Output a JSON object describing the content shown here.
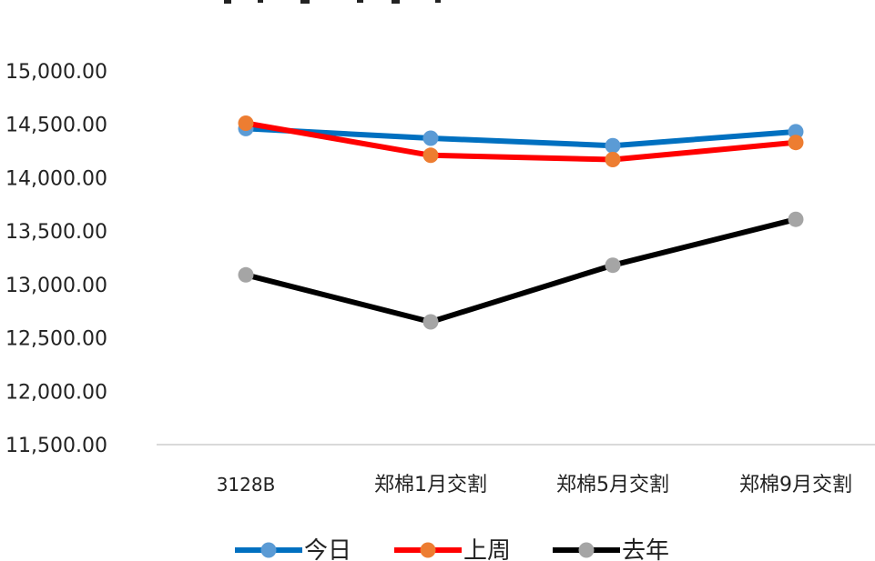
{
  "chart_data": {
    "type": "line",
    "title": "",
    "categories": [
      "3128B",
      "郑棉1月交割",
      "郑棉5月交割",
      "郑棉9月交割"
    ],
    "ylim": [
      11500,
      15000
    ],
    "yticks": [
      "15,000.00",
      "14,500.00",
      "14,000.00",
      "13,500.00",
      "13,000.00",
      "12,500.00",
      "12,000.00",
      "11,500.00"
    ],
    "ytick_values": [
      15000,
      14500,
      14000,
      13500,
      13000,
      12500,
      12000,
      11500
    ],
    "grid": false,
    "legend_position": "bottom",
    "series": [
      {
        "name": "今日",
        "values": [
          14460,
          14370,
          14300,
          14430
        ],
        "line_color": "#0070C0",
        "marker_color": "#5B9BD5"
      },
      {
        "name": "上周",
        "values": [
          14510,
          14210,
          14170,
          14330
        ],
        "line_color": "#FF0000",
        "marker_color": "#ED7D31"
      },
      {
        "name": "去年",
        "values": [
          13090,
          12650,
          13180,
          13610
        ],
        "line_color": "#000000",
        "marker_color": "#A5A5A5"
      }
    ]
  }
}
